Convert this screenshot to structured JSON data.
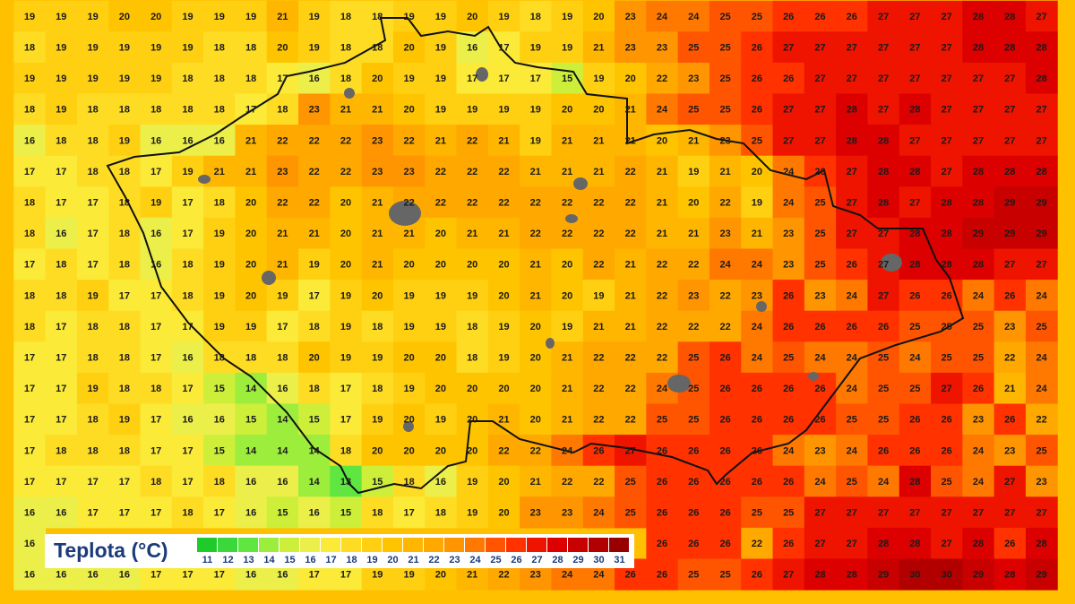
{
  "map": {
    "rows": [
      [
        19,
        19,
        19,
        20,
        20,
        19,
        19,
        19,
        21,
        19,
        18,
        18,
        19,
        19,
        20,
        19,
        18,
        19,
        20,
        23,
        24,
        24,
        25,
        25,
        26,
        26,
        26,
        27,
        27,
        27,
        28,
        28,
        27
      ],
      [
        18,
        19,
        19,
        19,
        19,
        19,
        18,
        18,
        20,
        19,
        18,
        18,
        20,
        19,
        16,
        17,
        19,
        19,
        21,
        23,
        23,
        25,
        25,
        26,
        27,
        27,
        27,
        27,
        27,
        27,
        28,
        28,
        28
      ],
      [
        19,
        19,
        19,
        19,
        19,
        18,
        18,
        18,
        17,
        16,
        18,
        20,
        19,
        19,
        17,
        17,
        17,
        15,
        19,
        20,
        22,
        23,
        25,
        26,
        26,
        27,
        27,
        27,
        27,
        27,
        27,
        27,
        28
      ],
      [
        18,
        19,
        18,
        18,
        18,
        18,
        18,
        17,
        18,
        23,
        21,
        21,
        20,
        19,
        19,
        19,
        19,
        20,
        20,
        21,
        24,
        25,
        25,
        26,
        27,
        27,
        28,
        27,
        28,
        27,
        27,
        27,
        27
      ],
      [
        16,
        18,
        18,
        19,
        16,
        16,
        16,
        21,
        22,
        22,
        22,
        23,
        22,
        21,
        22,
        21,
        19,
        21,
        21,
        21,
        20,
        21,
        23,
        25,
        27,
        27,
        28,
        28,
        27,
        27,
        27,
        27,
        27
      ],
      [
        17,
        17,
        18,
        18,
        17,
        19,
        21,
        21,
        23,
        22,
        22,
        23,
        23,
        22,
        22,
        22,
        21,
        21,
        21,
        22,
        21,
        19,
        21,
        20,
        24,
        26,
        27,
        28,
        28,
        27,
        28,
        28,
        28
      ],
      [
        18,
        17,
        17,
        18,
        19,
        17,
        18,
        20,
        22,
        22,
        20,
        21,
        22,
        22,
        22,
        22,
        22,
        22,
        22,
        22,
        21,
        20,
        22,
        19,
        24,
        25,
        27,
        28,
        27,
        28,
        28,
        29,
        29
      ],
      [
        18,
        16,
        17,
        18,
        16,
        17,
        19,
        20,
        21,
        21,
        20,
        21,
        21,
        20,
        21,
        21,
        22,
        22,
        22,
        22,
        21,
        21,
        23,
        21,
        23,
        25,
        27,
        27,
        28,
        28,
        29,
        29,
        29
      ],
      [
        17,
        18,
        17,
        18,
        16,
        18,
        19,
        20,
        21,
        19,
        20,
        21,
        20,
        20,
        20,
        20,
        21,
        20,
        22,
        21,
        22,
        22,
        24,
        24,
        23,
        25,
        26,
        27,
        28,
        28,
        28,
        27,
        27
      ],
      [
        18,
        18,
        19,
        17,
        17,
        18,
        19,
        20,
        19,
        17,
        19,
        20,
        19,
        19,
        19,
        20,
        21,
        20,
        19,
        21,
        22,
        23,
        22,
        23,
        26,
        23,
        24,
        27,
        26,
        26,
        24,
        26,
        24
      ],
      [
        18,
        17,
        18,
        18,
        17,
        17,
        19,
        19,
        17,
        18,
        19,
        18,
        19,
        19,
        18,
        19,
        20,
        19,
        21,
        21,
        22,
        22,
        22,
        24,
        26,
        26,
        26,
        26,
        25,
        25,
        25,
        23,
        25
      ],
      [
        17,
        17,
        18,
        18,
        17,
        16,
        18,
        18,
        18,
        20,
        19,
        19,
        20,
        20,
        18,
        19,
        20,
        21,
        22,
        22,
        22,
        25,
        26,
        24,
        25,
        24,
        24,
        25,
        24,
        25,
        25,
        22,
        24
      ],
      [
        17,
        17,
        19,
        18,
        18,
        17,
        15,
        14,
        16,
        18,
        17,
        18,
        19,
        20,
        20,
        20,
        20,
        21,
        22,
        22,
        24,
        25,
        26,
        26,
        26,
        26,
        24,
        25,
        25,
        27,
        26,
        21,
        24
      ],
      [
        17,
        17,
        18,
        19,
        17,
        16,
        16,
        15,
        14,
        15,
        17,
        19,
        20,
        19,
        20,
        21,
        20,
        21,
        22,
        22,
        25,
        25,
        26,
        26,
        26,
        26,
        25,
        25,
        26,
        26,
        23,
        26,
        22
      ],
      [
        17,
        18,
        18,
        18,
        17,
        17,
        15,
        14,
        14,
        14,
        18,
        20,
        20,
        20,
        20,
        22,
        22,
        24,
        26,
        27,
        26,
        26,
        26,
        26,
        24,
        23,
        24,
        26,
        26,
        26,
        24,
        23,
        25
      ],
      [
        17,
        17,
        17,
        17,
        18,
        17,
        18,
        16,
        16,
        14,
        13,
        15,
        18,
        16,
        19,
        20,
        21,
        22,
        22,
        25,
        26,
        26,
        26,
        26,
        26,
        24,
        25,
        24,
        28,
        25,
        24,
        27,
        23
      ],
      [
        16,
        16,
        17,
        17,
        17,
        18,
        17,
        16,
        15,
        16,
        15,
        18,
        17,
        18,
        19,
        20,
        23,
        23,
        24,
        25,
        26,
        26,
        26,
        25,
        25,
        27,
        27,
        27,
        27,
        27,
        27,
        27,
        27
      ],
      [
        16,
        null,
        null,
        null,
        null,
        null,
        null,
        null,
        null,
        null,
        null,
        null,
        null,
        null,
        null,
        null,
        null,
        null,
        null,
        null,
        26,
        26,
        26,
        22,
        26,
        27,
        27,
        28,
        28,
        27,
        28,
        26,
        28
      ],
      [
        16,
        16,
        16,
        16,
        17,
        17,
        17,
        16,
        16,
        17,
        17,
        19,
        19,
        20,
        21,
        22,
        23,
        24,
        24,
        26,
        26,
        25,
        25,
        26,
        27,
        28,
        28,
        29,
        30,
        30,
        29,
        28,
        29
      ]
    ],
    "legend": {
      "title": "Teplota (°C)",
      "levels": [
        11,
        12,
        13,
        14,
        15,
        16,
        17,
        18,
        19,
        20,
        21,
        22,
        23,
        24,
        25,
        26,
        27,
        28,
        29,
        30,
        31
      ],
      "colors": [
        "#1ecb2a",
        "#3ad83a",
        "#60e640",
        "#9ded3c",
        "#cdef3a",
        "#ecef4a",
        "#fbea38",
        "#ffdc24",
        "#ffd012",
        "#ffc400",
        "#ffb600",
        "#ffa800",
        "#ff9500",
        "#ff7800",
        "#ff5500",
        "#ff3200",
        "#ee1400",
        "#dc0000",
        "#c80000",
        "#b20000",
        "#980000"
      ]
    }
  }
}
